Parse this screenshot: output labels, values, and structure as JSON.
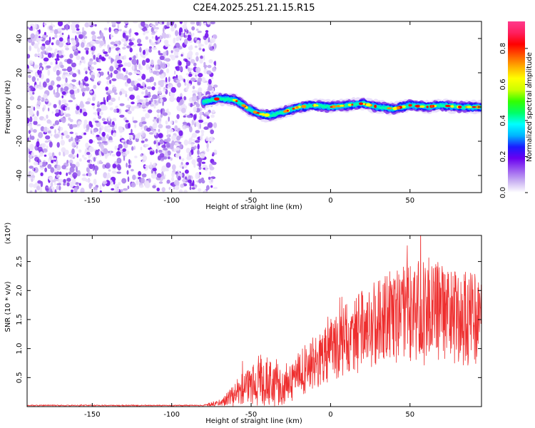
{
  "figure": {
    "title": "C2E4.2025.251.21.15.R15"
  },
  "chart_data": [
    {
      "type": "heatmap",
      "xlabel": "Height of straight line (km)",
      "ylabel": "Frequency (Hz)",
      "xlim": [
        -191,
        95
      ],
      "ylim": [
        -50,
        50
      ],
      "xticks": [
        -150,
        -100,
        -50,
        0,
        50
      ],
      "yticks": [
        -40,
        -20,
        0,
        20,
        40
      ],
      "noise_region_x": [
        -191,
        -75
      ],
      "ridge": [
        {
          "x": -80,
          "y": 3
        },
        {
          "x": -70,
          "y": 5
        },
        {
          "x": -60,
          "y": 4
        },
        {
          "x": -55,
          "y": 1
        },
        {
          "x": -50,
          "y": -2
        },
        {
          "x": -45,
          "y": -4
        },
        {
          "x": -38,
          "y": -5
        },
        {
          "x": -30,
          "y": -3
        },
        {
          "x": -20,
          "y": 0
        },
        {
          "x": -10,
          "y": 1
        },
        {
          "x": 0,
          "y": 0
        },
        {
          "x": 10,
          "y": 1
        },
        {
          "x": 20,
          "y": 2
        },
        {
          "x": 30,
          "y": 0
        },
        {
          "x": 40,
          "y": -1
        },
        {
          "x": 50,
          "y": 1
        },
        {
          "x": 60,
          "y": 0
        },
        {
          "x": 70,
          "y": 1
        },
        {
          "x": 80,
          "y": 0
        },
        {
          "x": 95,
          "y": 0
        }
      ],
      "colorbar": {
        "label": "Normalized spectral amplitude",
        "range": [
          0,
          0.95
        ],
        "ticks": [
          "0.0",
          "0.2",
          "0.4",
          "0.6",
          "0.8"
        ],
        "colors": [
          "#ffffff",
          "#c9b1f2",
          "#9b5af0",
          "#6a00f0",
          "#1b1bff",
          "#00b4ff",
          "#00ffff",
          "#00ff66",
          "#33ff00",
          "#ccff00",
          "#ffff00",
          "#ffb000",
          "#ff5a00",
          "#ff0000",
          "#ff1f5e",
          "#ff3a8c"
        ]
      }
    },
    {
      "type": "line",
      "xlabel": "Height of straight line (km)",
      "ylabel": "SNR (10 * v/v)",
      "scale_label": "(x10⁴)",
      "xlim": [
        -191,
        95
      ],
      "ylim": [
        0,
        2.95
      ],
      "xticks": [
        -150,
        -100,
        -50,
        0,
        50
      ],
      "yticks": [
        0.5,
        1.0,
        1.5,
        2.0,
        2.5
      ],
      "ytick_labels": [
        "0.5",
        "1.0",
        "1.5",
        "2.0",
        "2.5"
      ],
      "series": [
        {
          "name": "SNR",
          "color": "#ee2e2e",
          "envelope": [
            {
              "x": -191,
              "mean": 0.02,
              "spread": 0.01
            },
            {
              "x": -80,
              "mean": 0.02,
              "spread": 0.01
            },
            {
              "x": -68,
              "mean": 0.08,
              "spread": 0.07
            },
            {
              "x": -55,
              "mean": 0.3,
              "spread": 0.3
            },
            {
              "x": -45,
              "mean": 0.45,
              "spread": 0.45
            },
            {
              "x": -35,
              "mean": 0.4,
              "spread": 0.4
            },
            {
              "x": -28,
              "mean": 0.3,
              "spread": 0.3
            },
            {
              "x": -20,
              "mean": 0.55,
              "spread": 0.4
            },
            {
              "x": -10,
              "mean": 0.8,
              "spread": 0.5
            },
            {
              "x": 0,
              "mean": 1.0,
              "spread": 0.55
            },
            {
              "x": 20,
              "mean": 1.3,
              "spread": 0.7
            },
            {
              "x": 40,
              "mean": 1.55,
              "spread": 0.85
            },
            {
              "x": 60,
              "mean": 1.65,
              "spread": 0.95
            },
            {
              "x": 80,
              "mean": 1.55,
              "spread": 0.85
            },
            {
              "x": 95,
              "mean": 1.5,
              "spread": 0.8
            }
          ]
        }
      ]
    }
  ]
}
